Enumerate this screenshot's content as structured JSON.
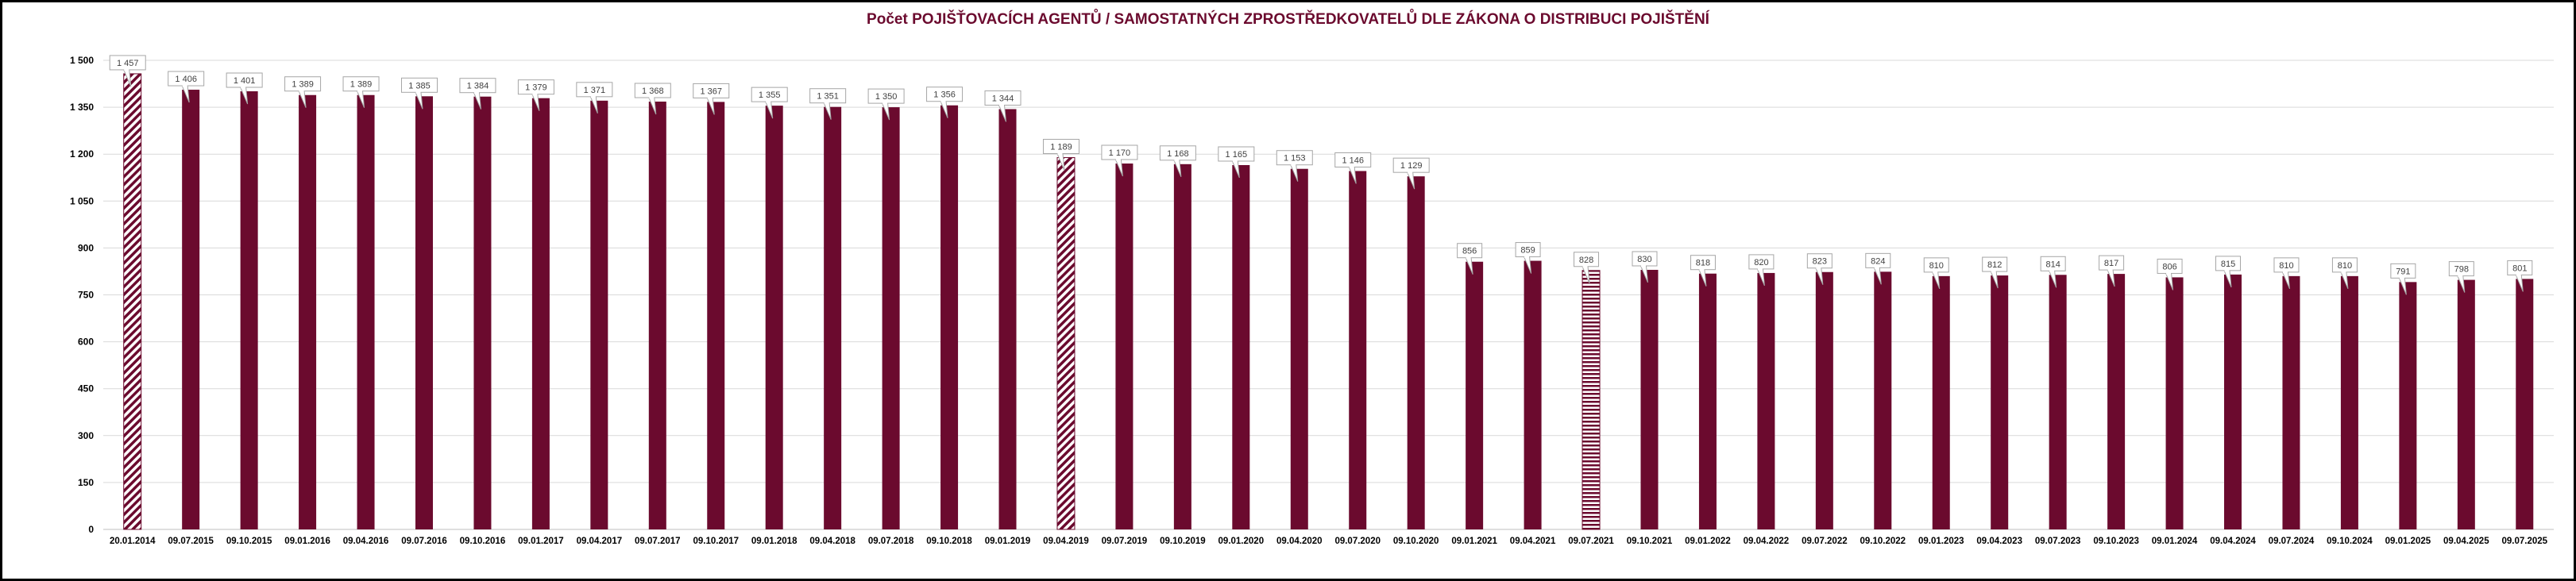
{
  "chart_data": {
    "type": "bar",
    "title": "Počet POJIŠŤOVACÍCH AGENTŮ / SAMOSTATNÝCH ZPROSTŘEDKOVATELŮ DLE ZÁKONA O DISTRIBUCI POJIŠTĚNÍ",
    "xlabel": "",
    "ylabel": "",
    "ylim": [
      0,
      1500
    ],
    "yticks": [
      "0",
      "150",
      "300",
      "450",
      "600",
      "750",
      "900",
      "1 050",
      "1 200",
      "1 350",
      "1 500"
    ],
    "grid": true,
    "bar_color": "#6b0a2e",
    "categories": [
      "20.01.2014",
      "09.07.2015",
      "09.10.2015",
      "09.01.2016",
      "09.04.2016",
      "09.07.2016",
      "09.10.2016",
      "09.01.2017",
      "09.04.2017",
      "09.07.2017",
      "09.10.2017",
      "09.01.2018",
      "09.04.2018",
      "09.07.2018",
      "09.10.2018",
      "09.01.2019",
      "09.04.2019",
      "09.07.2019",
      "09.10.2019",
      "09.01.2020",
      "09.04.2020",
      "09.07.2020",
      "09.10.2020",
      "09.01.2021",
      "09.04.2021",
      "09.07.2021",
      "09.10.2021",
      "09.01.2022",
      "09.04.2022",
      "09.07.2022",
      "09.10.2022",
      "09.01.2023",
      "09.04.2023",
      "09.07.2023",
      "09.10.2023",
      "09.01.2024",
      "09.04.2024",
      "09.07.2024",
      "09.10.2024",
      "09.01.2025",
      "09.04.2025",
      "09.07.2025"
    ],
    "values": [
      1457,
      1406,
      1401,
      1389,
      1389,
      1385,
      1384,
      1379,
      1371,
      1368,
      1367,
      1355,
      1351,
      1350,
      1356,
      1344,
      1189,
      1170,
      1168,
      1165,
      1153,
      1146,
      1129,
      856,
      859,
      828,
      830,
      818,
      820,
      823,
      824,
      810,
      812,
      814,
      817,
      806,
      815,
      810,
      810,
      791,
      798,
      801
    ],
    "labels": [
      "1 457",
      "1 406",
      "1 401",
      "1 389",
      "1 389",
      "1 385",
      "1 384",
      "1 379",
      "1 371",
      "1 368",
      "1 367",
      "1 355",
      "1 351",
      "1 350",
      "1 356",
      "1 344",
      "1 189",
      "1 170",
      "1 168",
      "1 165",
      "1 153",
      "1 146",
      "1 129",
      "856",
      "859",
      "828",
      "830",
      "818",
      "820",
      "823",
      "824",
      "810",
      "812",
      "814",
      "817",
      "806",
      "815",
      "810",
      "810",
      "791",
      "798",
      "801"
    ],
    "patterns": {
      "0": "diagonal-stripes",
      "16": "diagonal-stripes",
      "25": "horizontal-stripes"
    }
  }
}
